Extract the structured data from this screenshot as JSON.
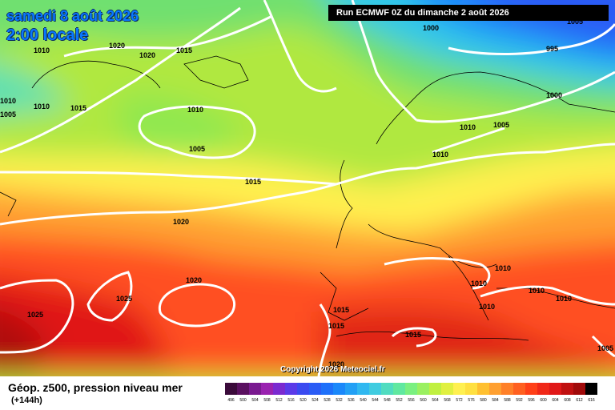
{
  "header": {
    "date": "samedi 8 août 2026",
    "time": "2:00 locale",
    "run": "Run ECMWF 0Z du dimanche 2 août 2026"
  },
  "copyright": "Copyright 2026 Meteociel.fr",
  "footer": {
    "field": "Géop. z500, pression niveau mer",
    "lead": "(+144h)"
  },
  "legend": {
    "ticks": [
      "496",
      "500",
      "504",
      "508",
      "512",
      "516",
      "520",
      "524",
      "528",
      "532",
      "536",
      "540",
      "544",
      "548",
      "552",
      "556",
      "560",
      "564",
      "568",
      "572",
      "576",
      "580",
      "584",
      "588",
      "592",
      "596",
      "600",
      "604",
      "608",
      "612",
      "616"
    ],
    "colors": [
      "#3a0a3a",
      "#5a1060",
      "#7a1a90",
      "#9a22b0",
      "#7a2ad0",
      "#5a3ae8",
      "#3a4af0",
      "#2a5cf5",
      "#1e70fa",
      "#1a88fa",
      "#22a0f5",
      "#30b8f0",
      "#40cce0",
      "#50dcc0",
      "#60e8a0",
      "#7af080",
      "#9af060",
      "#c0f040",
      "#e0f040",
      "#fff050",
      "#ffe040",
      "#ffc030",
      "#ffa030",
      "#ff8028",
      "#ff6020",
      "#ff4018",
      "#f02818",
      "#e01818",
      "#c01010",
      "#a00a0a",
      "#000000"
    ]
  },
  "isobars": [
    "1010",
    "1020",
    "1020",
    "1015",
    "1010",
    "1015",
    "1010",
    "1005",
    "1015",
    "1020",
    "1020",
    "1025",
    "1025",
    "1000",
    "995",
    "1000",
    "1010",
    "1005",
    "1010",
    "1010",
    "1010",
    "1015",
    "1015",
    "1015",
    "1010",
    "1010",
    "1010",
    "1010",
    "1005",
    "1005",
    "1005",
    "1020"
  ]
}
